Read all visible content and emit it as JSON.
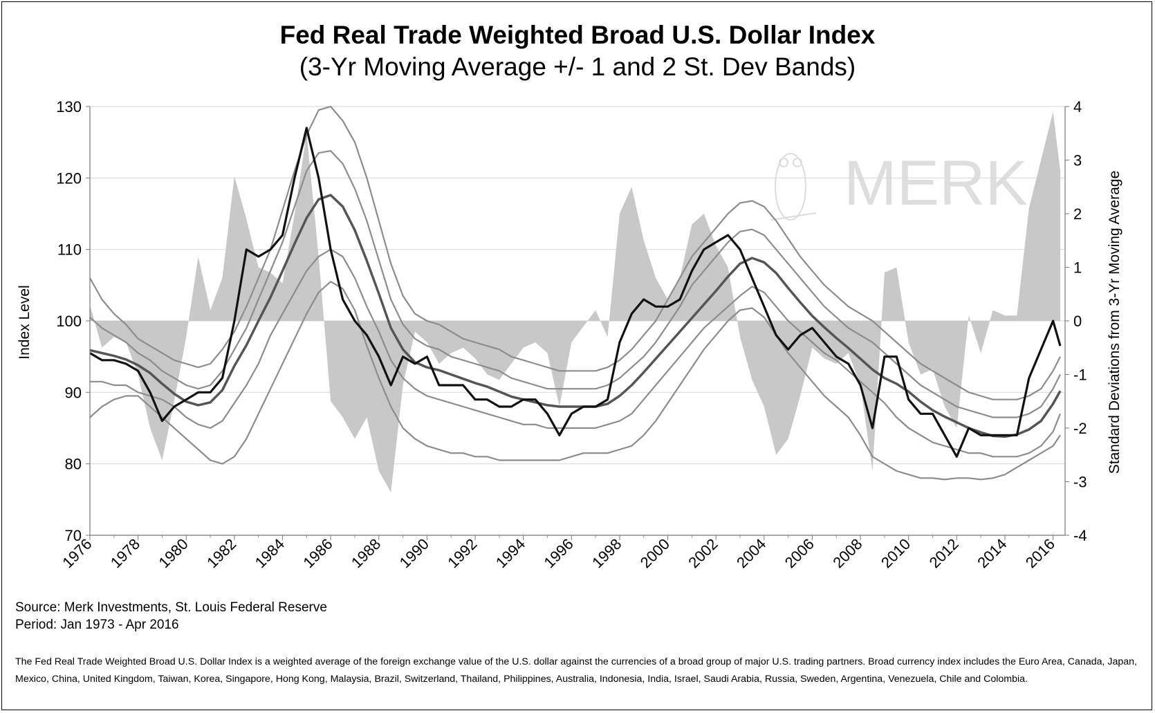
{
  "title": "Fed Real Trade Weighted Broad U.S. Dollar Index",
  "subtitle": "(3-Yr Moving Average +/- 1 and 2 St. Dev Bands)",
  "source": "Source: Merk Investments, St. Louis Federal Reserve",
  "period": "Period: Jan 1973 - Apr 2016",
  "note": "The Fed Real Trade Weighted Broad U.S. Dollar Index is a weighted average of the foreign exchange value of the U.S. dollar against the currencies of a broad group of major U.S. trading partners. Broad currency index includes the Euro Area, Canada, Japan, Mexico, China, United Kingdom, Taiwan, Korea, Singapore, Hong Kong, Malaysia, Brazil, Switzerland, Thailand, Philippines, Australia, Indonesia, India, Israel, Saudi Arabia, Russia, Sweden, Argentina, Venezuela, Chile and Colombia.",
  "watermark": "MERK",
  "colors": {
    "index": "#111111",
    "moving_average": "#555555",
    "bands": "#8c8c8c",
    "deviation_area": "#c8c8c8",
    "grid": "#d9d9d9"
  },
  "chart_data": {
    "type": "line",
    "title": "Fed Real Trade Weighted Broad U.S. Dollar Index",
    "subtitle": "(3-Yr Moving Average +/- 1 and 2 St. Dev Bands)",
    "ylabel": "Index Level",
    "y2label": "Standard Deviations from 3-Yr Moving Average",
    "xlim": [
      1976,
      2016.5
    ],
    "ylim": [
      70,
      130
    ],
    "y2lim": [
      -4,
      4
    ],
    "x_ticks": [
      "1976",
      "1978",
      "1980",
      "1982",
      "1984",
      "1986",
      "1988",
      "1990",
      "1992",
      "1994",
      "1996",
      "1998",
      "2000",
      "2002",
      "2004",
      "2006",
      "2008",
      "2010",
      "2012",
      "2014",
      "2016"
    ],
    "y_ticks": [
      "70",
      "80",
      "90",
      "100",
      "110",
      "120",
      "130"
    ],
    "y2_ticks": [
      "-4",
      "-3",
      "-2",
      "-1",
      "0",
      "1",
      "2",
      "3",
      "4"
    ],
    "grid": true,
    "legend": "none",
    "x": [
      1976,
      1976.5,
      1977,
      1977.5,
      1978,
      1978.5,
      1979,
      1979.5,
      1980,
      1980.5,
      1981,
      1981.5,
      1982,
      1982.5,
      1983,
      1983.5,
      1984,
      1984.5,
      1985,
      1985.5,
      1986,
      1986.5,
      1987,
      1987.5,
      1988,
      1988.5,
      1989,
      1989.5,
      1990,
      1990.5,
      1991,
      1991.5,
      1992,
      1992.5,
      1993,
      1993.5,
      1994,
      1994.5,
      1995,
      1995.5,
      1996,
      1996.5,
      1997,
      1997.5,
      1998,
      1998.5,
      1999,
      1999.5,
      2000,
      2000.5,
      2001,
      2001.5,
      2002,
      2002.5,
      2003,
      2003.5,
      2004,
      2004.5,
      2005,
      2005.5,
      2006,
      2006.5,
      2007,
      2007.5,
      2008,
      2008.5,
      2009,
      2009.5,
      2010,
      2010.5,
      2011,
      2011.5,
      2012,
      2012.5,
      2013,
      2013.5,
      2014,
      2014.5,
      2015,
      2015.5,
      2016,
      2016.3
    ],
    "series": [
      {
        "name": "",
        "axis": "left",
        "role": "index",
        "values": [
          95.5,
          94.5,
          94.5,
          94,
          93,
          90,
          86,
          88,
          89,
          90,
          90,
          92,
          100,
          110,
          109,
          110,
          112,
          120,
          127,
          120,
          110,
          103,
          100,
          98,
          95,
          91,
          95,
          94,
          95,
          91,
          91,
          91,
          89,
          89,
          88,
          88,
          89,
          89,
          87,
          84,
          87,
          88,
          88,
          89,
          97,
          101,
          103,
          102,
          102,
          103,
          107,
          110,
          111,
          112,
          110,
          106,
          102,
          98,
          96,
          98,
          99,
          97,
          95,
          94,
          91,
          85,
          95,
          95,
          89,
          87,
          87,
          84,
          81,
          85,
          84,
          84,
          84,
          84,
          92,
          96,
          100,
          96.5
        ]
      },
      {
        "name": "",
        "axis": "left",
        "role": "moving_average",
        "values": [
          95.9,
          95.5,
          95.1,
          94.6,
          93.8,
          92.7,
          91.2,
          89.8,
          88.7,
          88.2,
          88.6,
          90.3,
          93.7,
          96.6,
          100,
          103.3,
          107,
          110.8,
          114.4,
          117,
          117.6,
          116,
          112.7,
          108.4,
          103.8,
          99,
          96,
          94.2,
          93.5,
          93.1,
          92.5,
          91.9,
          91.3,
          90.8,
          90.1,
          89.4,
          89,
          88.6,
          88.2,
          88,
          88,
          88,
          88,
          88.4,
          89.5,
          91,
          92.8,
          94.7,
          96.6,
          98.5,
          100.4,
          102.3,
          104.2,
          106.2,
          108,
          108.8,
          108.2,
          106.7,
          104.6,
          102.6,
          100.7,
          99.1,
          97.6,
          96.2,
          94.7,
          93.2,
          92,
          91.2,
          90.1,
          88.7,
          87.5,
          86.6,
          85.8,
          85,
          84.4,
          83.9,
          83.8,
          84.1,
          84.8,
          86,
          88.4,
          90.2
        ]
      },
      {
        "name": "",
        "axis": "left",
        "role": "plus_2sd",
        "values": [
          106,
          103,
          101,
          99.5,
          97.5,
          96.5,
          95.5,
          94.5,
          94,
          93.5,
          94,
          96,
          98.5,
          102,
          106,
          110,
          115.5,
          121,
          126,
          129.5,
          130,
          128,
          125,
          120,
          114,
          108,
          103.5,
          101,
          100,
          99.5,
          98.5,
          97.5,
          97,
          96.5,
          96,
          95,
          94.5,
          94,
          93.5,
          93,
          93,
          93,
          93,
          93.5,
          94.5,
          96,
          98,
          100,
          103,
          106,
          109,
          111,
          113,
          115,
          116.5,
          116.8,
          116,
          114,
          111.5,
          109,
          107,
          105,
          103.5,
          102,
          101,
          100,
          98.5,
          97,
          95.5,
          94,
          93,
          92,
          91,
          90,
          89.5,
          89,
          89,
          89,
          89.5,
          90.5,
          93,
          95
        ]
      },
      {
        "name": "",
        "axis": "left",
        "role": "plus_1sd",
        "values": [
          100.5,
          99,
          98,
          97,
          95.5,
          94.5,
          93,
          92,
          91,
          90.5,
          91,
          93,
          96,
          99,
          103,
          107,
          111,
          116,
          121,
          123.5,
          123.8,
          122,
          118.5,
          114,
          108.5,
          103,
          99.5,
          97.5,
          96.5,
          96,
          95,
          94.5,
          94,
          93.5,
          93,
          92,
          91.5,
          91,
          90.5,
          90.5,
          90.5,
          90.5,
          90.5,
          91,
          92,
          93.5,
          95,
          97,
          99.5,
          102,
          105,
          107,
          109,
          111,
          112.5,
          112.8,
          112,
          110,
          108,
          106,
          104,
          102,
          100.5,
          99,
          98,
          97,
          95.5,
          94,
          92.5,
          91,
          90,
          89,
          88,
          87.5,
          87,
          86.5,
          86.5,
          86.5,
          87,
          88,
          90.5,
          92.5
        ]
      },
      {
        "name": "",
        "axis": "left",
        "role": "minus_1sd",
        "values": [
          91.5,
          91.5,
          91,
          91,
          90,
          89.5,
          89,
          88,
          86.5,
          85.5,
          85,
          86,
          88.5,
          91,
          94,
          98,
          101,
          104,
          107,
          109,
          110,
          109,
          106,
          102,
          98.5,
          94.5,
          92,
          90.5,
          89.5,
          89,
          88.5,
          88,
          87.5,
          87,
          86.5,
          86,
          85.5,
          85.5,
          85,
          85,
          85,
          85,
          85,
          85.5,
          86,
          87,
          89,
          91,
          93,
          95,
          97,
          99,
          100.5,
          102,
          103.5,
          104.8,
          104,
          102,
          100,
          98.5,
          97,
          95.5,
          94.5,
          93,
          91.5,
          90,
          88.5,
          86.5,
          85,
          84,
          83,
          82.5,
          82,
          81.5,
          81.5,
          81,
          81,
          81,
          81.5,
          82.5,
          84.5,
          87
        ]
      },
      {
        "name": "",
        "axis": "left",
        "role": "minus_2sd",
        "values": [
          86.5,
          88,
          89,
          89.5,
          89.5,
          88,
          86.5,
          85,
          83.5,
          82,
          80.5,
          80,
          81,
          83.5,
          87,
          90.5,
          94,
          97.5,
          101,
          104,
          105.5,
          104.5,
          101.5,
          96.5,
          92,
          88,
          85,
          83.5,
          82.5,
          82,
          81.5,
          81.5,
          81,
          81,
          80.5,
          80.5,
          80.5,
          80.5,
          80.5,
          80.5,
          81,
          81.5,
          81.5,
          81.5,
          82,
          82.5,
          84,
          86,
          88.5,
          91,
          93.5,
          96,
          98,
          100,
          101.5,
          101.8,
          100.5,
          98,
          95.5,
          93.5,
          91.5,
          89.5,
          88,
          86.5,
          84,
          81,
          80,
          79,
          78.5,
          78,
          78,
          77.8,
          78,
          78,
          77.8,
          78,
          78.5,
          79.5,
          80.5,
          81.5,
          82.5,
          84
        ]
      },
      {
        "name": "",
        "axis": "right",
        "role": "deviation",
        "type": "area",
        "values": [
          0.3,
          -0.5,
          -0.3,
          -0.4,
          -1.0,
          -2.0,
          -2.6,
          -1.5,
          -0.3,
          1.2,
          0.2,
          0.8,
          2.7,
          1.9,
          1.0,
          0.9,
          0.7,
          2.0,
          3.5,
          1.2,
          -1.5,
          -1.8,
          -2.2,
          -1.8,
          -2.8,
          -3.2,
          -1.2,
          -0.2,
          -0.4,
          -0.8,
          -0.6,
          -0.5,
          -0.7,
          -1.0,
          -1.1,
          -0.8,
          -0.5,
          -0.4,
          -0.6,
          -1.6,
          -0.4,
          -0.1,
          0.2,
          -0.3,
          2.0,
          2.5,
          1.5,
          0.8,
          0.4,
          0.8,
          1.8,
          2.0,
          1.4,
          1.0,
          -0.3,
          -1.1,
          -1.6,
          -2.5,
          -2.2,
          -1.4,
          -0.5,
          -0.7,
          -0.8,
          -0.6,
          -1.2,
          -2.8,
          0.9,
          1.0,
          -0.4,
          -1.0,
          -0.9,
          -1.6,
          -2.0,
          0.1,
          -0.6,
          0.2,
          0.1,
          0.1,
          2.1,
          3.0,
          3.9,
          2.8
        ]
      }
    ]
  }
}
